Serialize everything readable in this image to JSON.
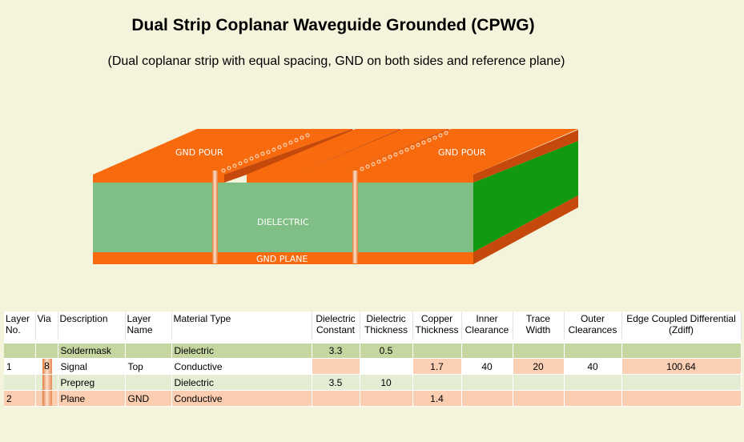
{
  "page": {
    "title": "Dual Strip Coplanar Waveguide Grounded (CPWG)",
    "subtitle": "(Dual coplanar strip with equal spacing, GND on both sides and reference plane)"
  },
  "diagram_labels": {
    "gnd_pour_left": "GND POUR",
    "gnd_pour_right": "GND POUR",
    "dielectric": "DIELECTRIC",
    "gnd_plane": "GND PLANE"
  },
  "colors": {
    "copper": "#f76a0e",
    "copper_dark": "#c4490a",
    "dielectric_front": "#7fbf85",
    "dielectric_side": "#119911",
    "background": "#f4f3dc"
  },
  "table": {
    "headers": [
      "Layer No.",
      "Via",
      "Description",
      "Layer Name",
      "Material Type",
      "Dielectric Constant",
      "Dielectric Thickness",
      "Copper Thickness",
      "Inner Clearance",
      "Trace Width",
      "Outer Clearances",
      "Edge Coupled Differential (Zdiff)"
    ],
    "rows": [
      {
        "layer_no": "",
        "via": "",
        "description": "Soldermask",
        "layer_name": "",
        "material": "Dielectric",
        "dk": "3.3",
        "dth": "0.5",
        "cu": "",
        "inner": "",
        "trace": "",
        "outer": "",
        "zdiff": ""
      },
      {
        "layer_no": "1",
        "via": "8",
        "description": "Signal",
        "layer_name": "Top",
        "material": "Conductive",
        "dk": "",
        "dth": "",
        "cu": "1.7",
        "inner": "40",
        "trace": "20",
        "outer": "40",
        "zdiff": "100.64"
      },
      {
        "layer_no": "",
        "via": "",
        "description": "Prepreg",
        "layer_name": "",
        "material": "Dielectric",
        "dk": "3.5",
        "dth": "10",
        "cu": "",
        "inner": "",
        "trace": "",
        "outer": "",
        "zdiff": ""
      },
      {
        "layer_no": "2",
        "via": "",
        "description": "Plane",
        "layer_name": "GND",
        "material": "Conductive",
        "dk": "",
        "dth": "",
        "cu": "1.4",
        "inner": "",
        "trace": "",
        "outer": "",
        "zdiff": ""
      }
    ]
  }
}
